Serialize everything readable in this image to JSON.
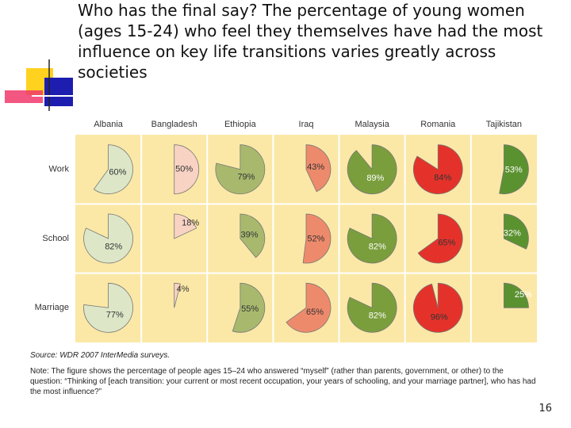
{
  "chart_data": {
    "type": "pie",
    "title": "Who has the final say? The percentage of young women (ages 15-24) who feel they themselves have had the most influence on key life transitions varies greatly across societies",
    "categories": [
      "Albania",
      "Bangladesh",
      "Ethiopia",
      "Iraq",
      "Malaysia",
      "Romania",
      "Tajikistan"
    ],
    "colors": [
      "#dde7c8",
      "#f8d3c3",
      "#a8b96e",
      "#ee8a6c",
      "#7a9e3c",
      "#e4322b",
      "#5b9230"
    ],
    "label_colors": [
      "#333333",
      "#333333",
      "#333333",
      "#333333",
      "#ffffff",
      "#333333",
      "#ffffff"
    ],
    "background": "#fbe8a6",
    "series": [
      {
        "name": "Work",
        "values": [
          60,
          50,
          79,
          43,
          89,
          84,
          53
        ],
        "value_labels": [
          "60%",
          "50%",
          "79%",
          "43%",
          "89%",
          "84%",
          "53%"
        ]
      },
      {
        "name": "School",
        "values": [
          82,
          18,
          39,
          52,
          82,
          65,
          32
        ],
        "value_labels": [
          "82%",
          "18%",
          "39%",
          "52%",
          "82%",
          "65%",
          "32%"
        ]
      },
      {
        "name": "Marriage",
        "values": [
          77,
          4,
          55,
          65,
          82,
          96,
          25
        ],
        "value_labels": [
          "77%",
          "4%",
          "55%",
          "65%",
          "82%",
          "96%",
          "25%"
        ]
      }
    ]
  },
  "source": "Source: WDR 2007 InterMedia surveys.",
  "note": "Note: The figure shows the percentage of people ages 15–24 who answered “myself” (rather than parents, government, or other) to the question: “Thinking of [each transition: your current or most recent occupation, your years of schooling, and your marriage partner], who has had the most influence?”",
  "page_number": "16"
}
